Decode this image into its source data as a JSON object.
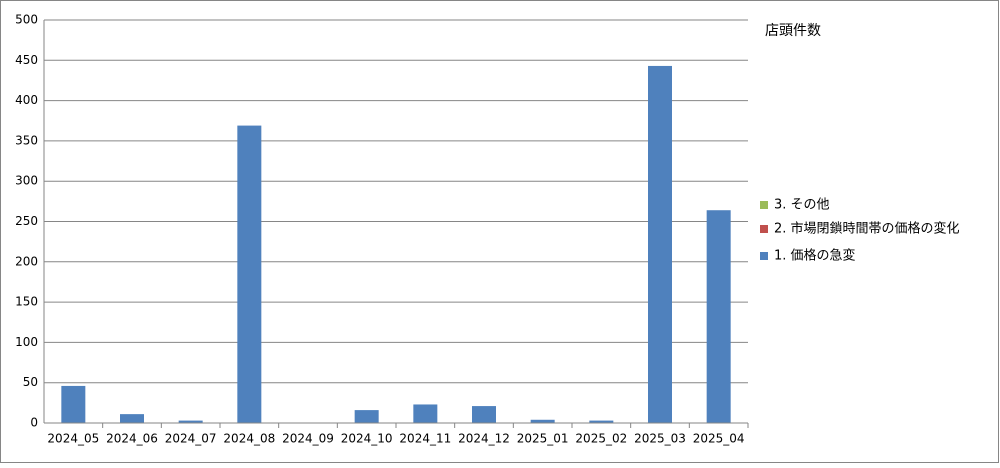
{
  "chart_data": {
    "type": "stacked_bar",
    "title": "店頭件数",
    "categories": [
      "2024_05",
      "2024_06",
      "2024_07",
      "2024_08",
      "2024_09",
      "2024_10",
      "2024_11",
      "2024_12",
      "2025_01",
      "2025_02",
      "2025_03",
      "2025_04"
    ],
    "series": [
      {
        "name": "1. 価格の急変",
        "color": "#4f81bd",
        "values": [
          46,
          11,
          3,
          369,
          0,
          16,
          23,
          21,
          4,
          3,
          443,
          264
        ]
      },
      {
        "name": "2. 市場閉鎖時間帯の価格の変化",
        "color": "#c0504d",
        "values": [
          0,
          0,
          0,
          0,
          0,
          0,
          0,
          0,
          0,
          0,
          0,
          0
        ]
      },
      {
        "name": "3. その他",
        "color": "#9bbb59",
        "values": [
          0,
          0,
          0,
          0,
          0,
          0,
          0,
          0,
          0,
          0,
          0,
          0
        ]
      }
    ],
    "ylim": [
      0,
      500
    ],
    "yticks": [
      0,
      50,
      100,
      150,
      200,
      250,
      300,
      350,
      400,
      450,
      500
    ],
    "grid": true,
    "legend": "right"
  }
}
